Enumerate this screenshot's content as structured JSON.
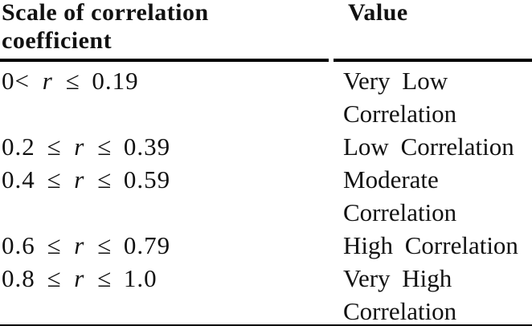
{
  "table": {
    "header": {
      "scale_label": "Scale of correlation\ncoefficient",
      "value_label": "Value"
    },
    "rows": [
      {
        "scale_pre": "0< ",
        "scale_var": "r",
        "scale_post": " ≤ 0.19",
        "value": "Very Low\nCorrelation"
      },
      {
        "scale_pre": "0.2 ≤ ",
        "scale_var": "r",
        "scale_post": " ≤ 0.39",
        "value": "Low Correlation"
      },
      {
        "scale_pre": "0.4 ≤ ",
        "scale_var": "r",
        "scale_post": " ≤ 0.59",
        "value": "Moderate\nCorrelation"
      },
      {
        "scale_pre": "0.6 ≤ ",
        "scale_var": "r",
        "scale_post": " ≤ 0.79",
        "value": "High Correlation"
      },
      {
        "scale_pre": "0.8 ≤ ",
        "scale_var": "r",
        "scale_post": " ≤ 1.0",
        "value": "Very High\nCorrelation"
      }
    ],
    "colors": {
      "text": "#111111",
      "rule": "#000000",
      "background": "#ffffff"
    }
  },
  "chart_data": {
    "type": "table",
    "columns": [
      "Scale of correlation coefficient",
      "Value"
    ],
    "rows": [
      [
        "0 < r ≤ 0.19",
        "Very Low Correlation"
      ],
      [
        "0.2 ≤ r ≤ 0.39",
        "Low Correlation"
      ],
      [
        "0.4 ≤ r ≤ 0.59",
        "Moderate Correlation"
      ],
      [
        "0.6 ≤ r ≤ 0.79",
        "High Correlation"
      ],
      [
        "0.8 ≤ r ≤ 1.0",
        "Very High Correlation"
      ]
    ]
  }
}
